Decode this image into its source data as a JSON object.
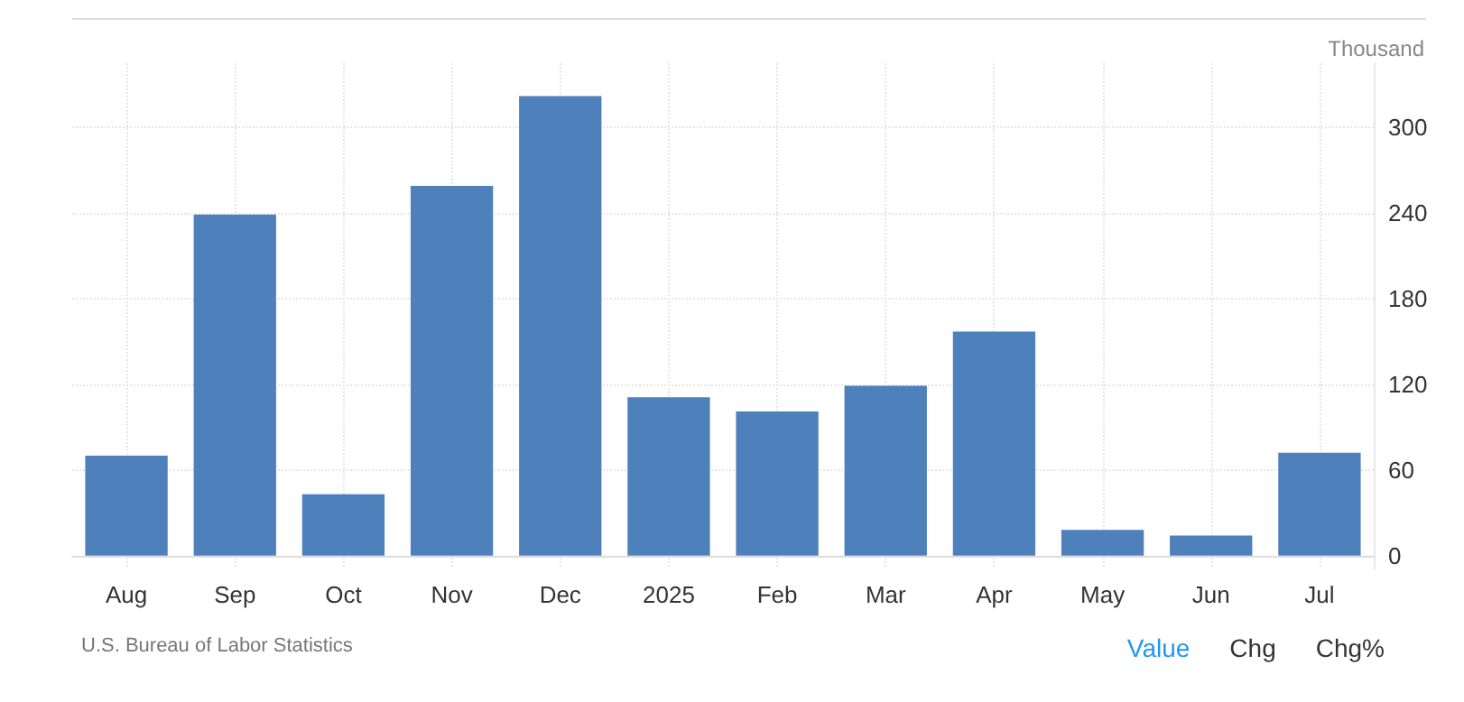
{
  "chart_data": {
    "type": "bar",
    "ylabel": "Thousand",
    "categories": [
      "Aug",
      "Sep",
      "Oct",
      "Nov",
      "Dec",
      "2025",
      "Feb",
      "Mar",
      "Apr",
      "May",
      "Jun",
      "Jul"
    ],
    "values": [
      70,
      239,
      43,
      259,
      322,
      111,
      101,
      119,
      157,
      18,
      14,
      72
    ],
    "color": "#4e80bb",
    "ylim": [
      -9,
      345
    ],
    "yticks": [
      0,
      60,
      120,
      180,
      240,
      300
    ],
    "grid": true,
    "annotations": [
      "U.S. Bureau of Labor Statistics",
      "Value",
      "Chg",
      "Chg%"
    ]
  }
}
